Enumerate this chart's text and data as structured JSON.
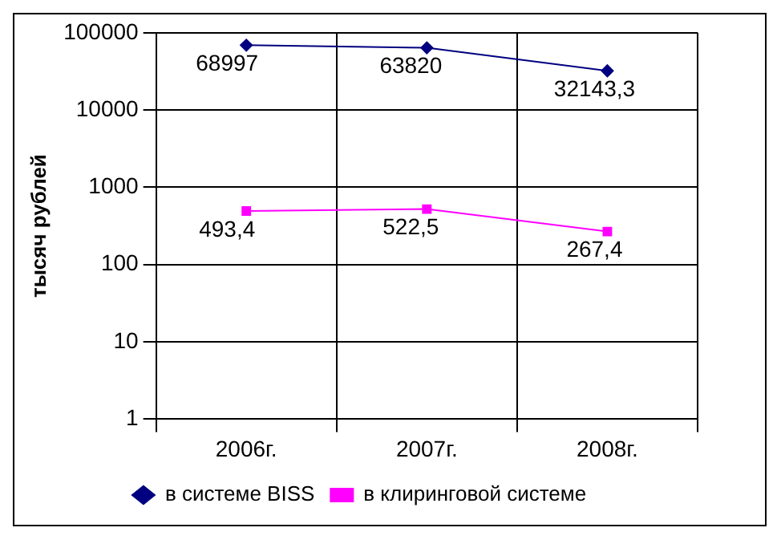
{
  "chart_data": {
    "type": "line",
    "ylabel": "тысяч рублей",
    "categories": [
      "2006г.",
      "2007г.",
      "2008г."
    ],
    "series": [
      {
        "name": "в системе BISS",
        "color": "#000080",
        "marker": "diamond",
        "values": [
          68997,
          63820,
          32143.3
        ],
        "value_labels": [
          "68997",
          "63820",
          "32143,3"
        ]
      },
      {
        "name": "в клиринговой системе",
        "color": "#ff00ff",
        "marker": "square",
        "values": [
          493.4,
          522.5,
          267.4
        ],
        "value_labels": [
          "493,4",
          "522,5",
          "267,4"
        ]
      }
    ],
    "log": "y",
    "ylim": [
      1,
      100000
    ],
    "yticks": [
      1,
      10,
      100,
      1000,
      10000,
      100000
    ],
    "grid": true,
    "legend": "bottom"
  }
}
